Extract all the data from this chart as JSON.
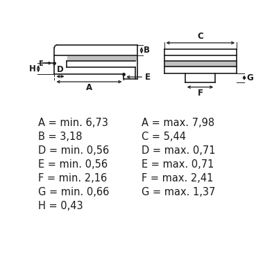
{
  "bg_color": "#ffffff",
  "line_color": "#1a1a1a",
  "gray_fill": "#c0c0c0",
  "specs_left": [
    "A = min. 6,73",
    "B = 3,18",
    "D = min. 0,56",
    "E = min. 0,56",
    "F = min. 2,16",
    "G = min. 0,66",
    "H = 0,43"
  ],
  "specs_right": [
    "A = max. 7,98",
    "C = 5,44",
    "D = max. 0,71",
    "E = max. 0,71",
    "F = max. 2,41",
    "G = max. 1,37"
  ],
  "font_size": 10.5,
  "label_font_size": 8.5
}
